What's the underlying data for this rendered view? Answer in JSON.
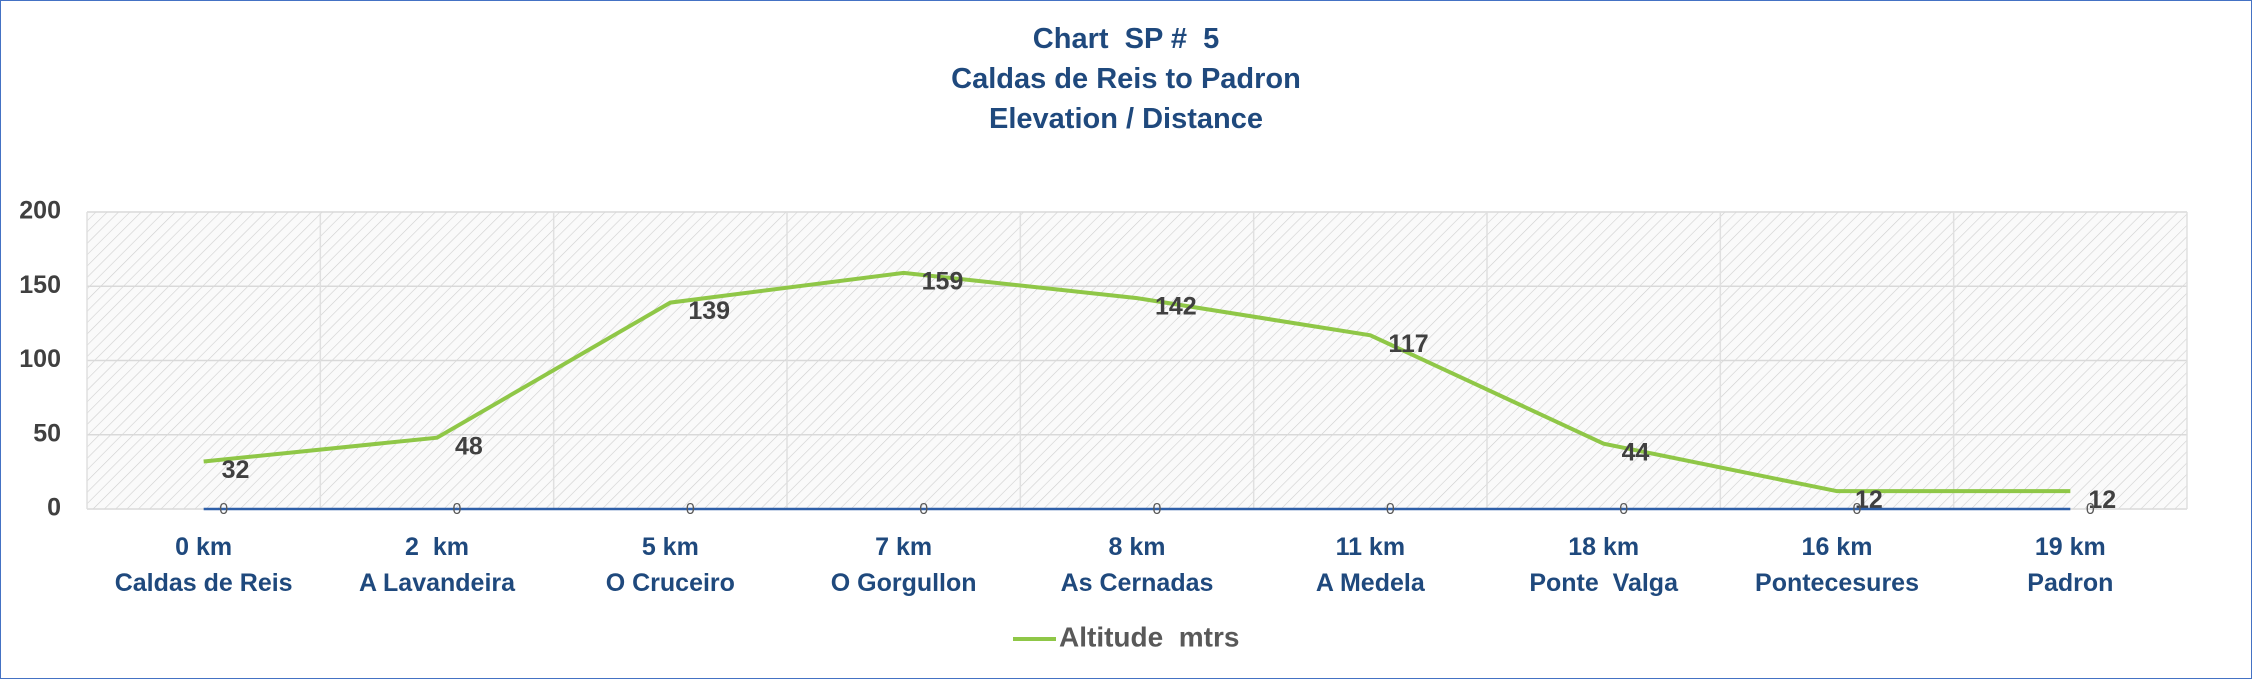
{
  "chart_data": {
    "type": "line",
    "title": "Chart  SP #  5\nCaldas de Reis to Padron\nElevation / Distance",
    "categories": [
      "0 km\nCaldas de Reis",
      "2  km\nA Lavandeira",
      "5 km\nO Cruceiro",
      "7 km\nO Gorgullon",
      "8 km\nAs Cernadas",
      "11 km\nA Medela",
      "18 km\nPonte  Valga",
      "16 km\nPontecesures",
      "19 km\nPadron"
    ],
    "series": [
      {
        "name": "Altitude  mtrs",
        "color": "#8fc747",
        "values": [
          32,
          48,
          139,
          159,
          142,
          117,
          44,
          12,
          12
        ]
      },
      {
        "color": "#2e5fa8",
        "values": [
          0,
          0,
          0,
          0,
          0,
          0,
          0,
          0,
          0
        ]
      }
    ],
    "ylim": [
      0,
      200
    ],
    "yticks": [
      0,
      50,
      100,
      150,
      200
    ],
    "grid": true
  }
}
